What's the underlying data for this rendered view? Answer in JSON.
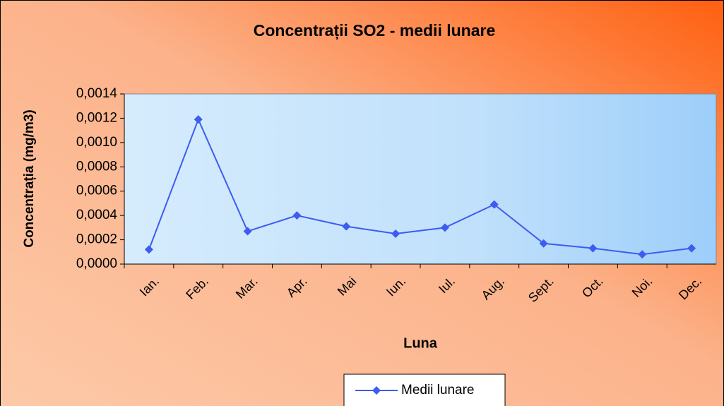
{
  "chart_data": {
    "type": "line",
    "title": "Concentrații SO2 - medii lunare",
    "x_label": "Luna",
    "y_label": "Concentrația (mg/m3)",
    "categories": [
      "Ian.",
      "Feb.",
      "Mar.",
      "Apr.",
      "Mai",
      "Iun.",
      "Iul.",
      "Aug.",
      "Sept.",
      "Oct.",
      "Noi.",
      "Dec."
    ],
    "series": [
      {
        "name": "Medii lunare",
        "color": "#3d5cf0",
        "values": [
          0.00012,
          0.00119,
          0.00027,
          0.0004,
          0.00031,
          0.00025,
          0.0003,
          0.00049,
          0.00017,
          0.00013,
          8e-05,
          0.00013
        ]
      }
    ],
    "ylim": [
      0,
      0.0014
    ],
    "yticks": [
      {
        "value": 0,
        "label": "0,0000"
      },
      {
        "value": 0.0002,
        "label": "0,0002"
      },
      {
        "value": 0.0004,
        "label": "0,0004"
      },
      {
        "value": 0.0006,
        "label": "0,0006"
      },
      {
        "value": 0.0008,
        "label": "0,0008"
      },
      {
        "value": 0.001,
        "label": "0,0010"
      },
      {
        "value": 0.0012,
        "label": "0,0012"
      },
      {
        "value": 0.0014,
        "label": "0,0014"
      }
    ],
    "legend": "bottom"
  }
}
